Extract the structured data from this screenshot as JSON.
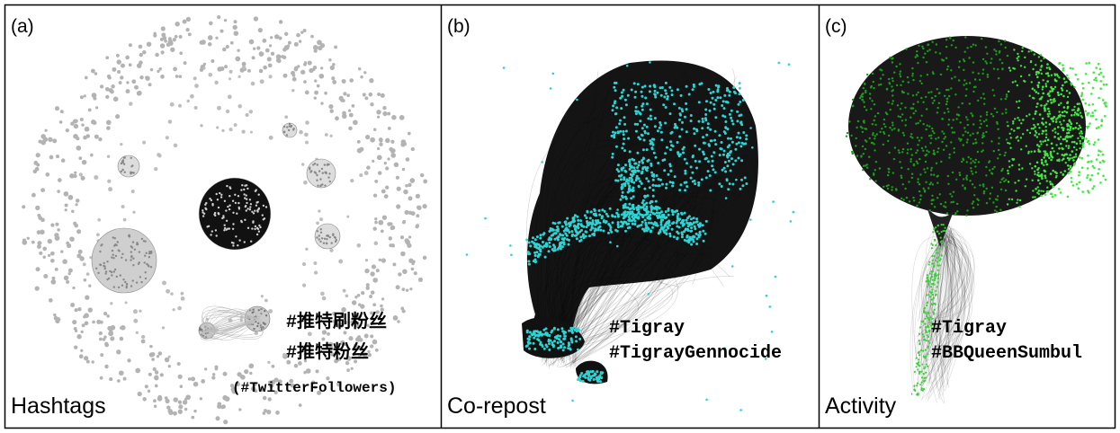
{
  "panels": [
    {
      "label": "(a)",
      "name": "Hashtags",
      "annotations": [
        "#推特刷粉丝",
        "#推特粉丝",
        "(#TwitterFollowers)"
      ]
    },
    {
      "label": "(b)",
      "name": "Co-repost",
      "annotations": [
        "#Tigray",
        "#TigrayGennocide"
      ]
    },
    {
      "label": "(c)",
      "name": "Activity",
      "annotations": [
        "#Tigray",
        "#BBQueenSumbul"
      ]
    }
  ]
}
